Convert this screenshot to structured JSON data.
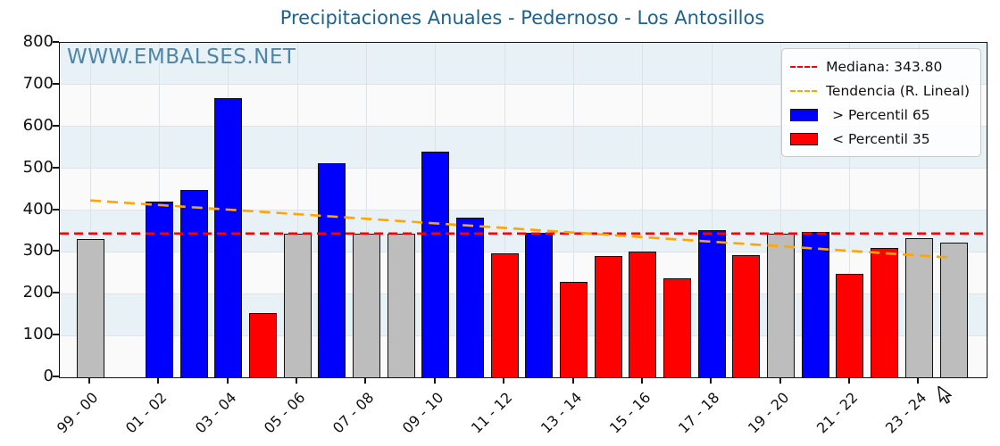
{
  "title": "Precipitaciones Anuales - Pedernoso - Los Antosillos",
  "watermark": "WWW.EMBALSES.NET",
  "legend": {
    "median_label": "Mediana: 343.80",
    "trend_label": "Tendencia (R. Lineal)",
    "above_label": "> Percentil 65",
    "below_label": "< Percentil 35"
  },
  "colors": {
    "title": "#1f618d",
    "watermark": "#246790",
    "above_percentil_65": "#0000ff",
    "below_percentil_35": "#ff0000",
    "between_percentiles": "#bdbdbd",
    "bar_edge": "#111111",
    "median_line": "#ff0000",
    "trend_line": "#ffa500",
    "band_tint": "#e7f1f6",
    "plot_background": "#fafafa"
  },
  "chart_data": {
    "type": "bar",
    "title": "Precipitaciones Anuales - Pedernoso - Los Antosillos",
    "xlabel": "",
    "ylabel": "",
    "ylim": [
      0,
      800
    ],
    "y_ticks": [
      0,
      100,
      200,
      300,
      400,
      500,
      600,
      700,
      800
    ],
    "x_tick_labels": [
      "99 - 00",
      "01 - 02",
      "03 - 04",
      "05 - 06",
      "07 - 08",
      "09 - 10",
      "11 - 12",
      "13 - 14",
      "15 - 16",
      "17 - 18",
      "19 - 20",
      "21 - 22",
      "23 - 24"
    ],
    "grid": true,
    "legend_position": "upper right",
    "median": 343.8,
    "trend_line": {
      "start_value": 423,
      "end_value": 286
    },
    "missing_seasons": [
      "00 - 01"
    ],
    "bars": [
      {
        "season": "99 - 00",
        "slot": 0,
        "value": 330,
        "category": "mid"
      },
      {
        "season": "01 - 02",
        "slot": 2,
        "value": 420,
        "category": "above"
      },
      {
        "season": "02 - 03",
        "slot": 3,
        "value": 448,
        "category": "above"
      },
      {
        "season": "03 - 04",
        "slot": 4,
        "value": 667,
        "category": "above"
      },
      {
        "season": "04 - 05",
        "slot": 5,
        "value": 154,
        "category": "below"
      },
      {
        "season": "05 - 06",
        "slot": 6,
        "value": 343,
        "category": "mid"
      },
      {
        "season": "06 - 07",
        "slot": 7,
        "value": 512,
        "category": "above"
      },
      {
        "season": "07 - 08",
        "slot": 8,
        "value": 343,
        "category": "mid"
      },
      {
        "season": "08 - 09",
        "slot": 9,
        "value": 343,
        "category": "mid"
      },
      {
        "season": "09 - 10",
        "slot": 10,
        "value": 540,
        "category": "above"
      },
      {
        "season": "10 - 11",
        "slot": 11,
        "value": 381,
        "category": "above"
      },
      {
        "season": "11 - 12",
        "slot": 12,
        "value": 296,
        "category": "below"
      },
      {
        "season": "12 - 13",
        "slot": 13,
        "value": 346,
        "category": "above"
      },
      {
        "season": "13 - 14",
        "slot": 14,
        "value": 229,
        "category": "below"
      },
      {
        "season": "14 - 15",
        "slot": 15,
        "value": 290,
        "category": "below"
      },
      {
        "season": "15 - 16",
        "slot": 16,
        "value": 300,
        "category": "below"
      },
      {
        "season": "16 - 17",
        "slot": 17,
        "value": 236,
        "category": "below"
      },
      {
        "season": "17 - 18",
        "slot": 18,
        "value": 353,
        "category": "above"
      },
      {
        "season": "18 - 19",
        "slot": 19,
        "value": 293,
        "category": "below"
      },
      {
        "season": "19 - 20",
        "slot": 20,
        "value": 343,
        "category": "mid"
      },
      {
        "season": "20 - 21",
        "slot": 21,
        "value": 347,
        "category": "above"
      },
      {
        "season": "21 - 22",
        "slot": 22,
        "value": 248,
        "category": "below"
      },
      {
        "season": "22 - 23",
        "slot": 23,
        "value": 310,
        "category": "below"
      },
      {
        "season": "23 - 24",
        "slot": 24,
        "value": 332,
        "category": "mid"
      },
      {
        "season": "24 - 25",
        "slot": 25,
        "value": 323,
        "category": "mid"
      }
    ]
  }
}
